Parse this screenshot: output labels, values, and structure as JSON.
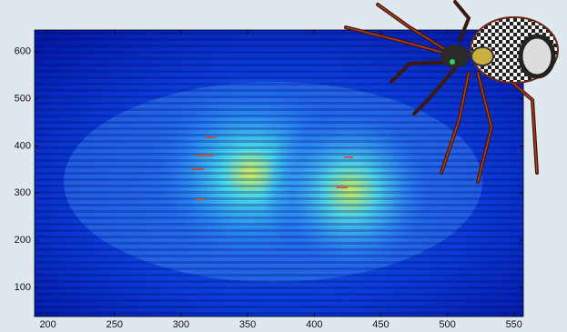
{
  "chart_data": {
    "type": "heatmap",
    "xlim": [
      190,
      557
    ],
    "xticks": [
      200,
      250,
      300,
      350,
      400,
      450,
      500,
      550
    ],
    "ylim": [
      38,
      646
    ],
    "yticks": [
      100,
      200,
      300,
      400,
      500,
      600
    ]
  }
}
